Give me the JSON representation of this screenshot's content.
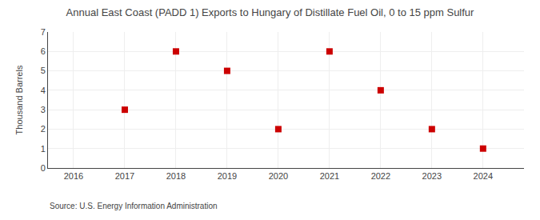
{
  "chart_data": {
    "type": "scatter",
    "title": "Annual East Coast (PADD 1) Exports to Hungary of Distillate Fuel Oil, 0 to 15 ppm Sulfur",
    "ylabel": "Thousand Barrels",
    "annotations": [
      "Source: U.S. Energy Information Administration"
    ],
    "x": [
      2017,
      2018,
      2019,
      2020,
      2021,
      2022,
      2023,
      2024
    ],
    "values": [
      3,
      6,
      5,
      2,
      6,
      4,
      2,
      1
    ],
    "color": "#cc0000",
    "marker": "square",
    "xlim": [
      2015.5,
      2024.8
    ],
    "ylim": [
      0,
      7
    ],
    "xticks": [
      2016,
      2017,
      2018,
      2019,
      2020,
      2021,
      2022,
      2023,
      2024
    ],
    "yticks": [
      0,
      1,
      2,
      3,
      4,
      5,
      6,
      7
    ],
    "grid": true
  }
}
